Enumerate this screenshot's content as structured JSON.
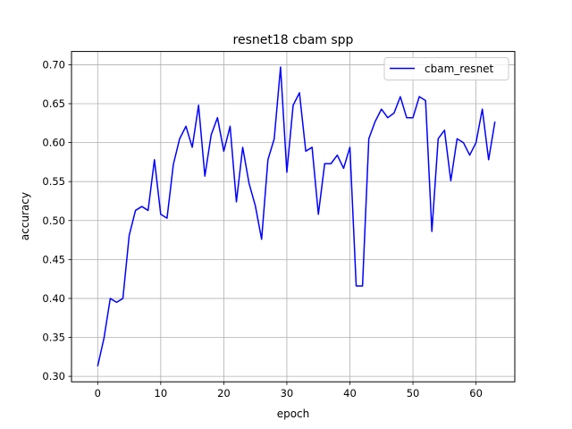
{
  "chart_data": {
    "type": "line",
    "title": "resnet18 cbam spp",
    "xlabel": "epoch",
    "ylabel": "accuracy",
    "xlim": [
      -4.15,
      66.15
    ],
    "ylim": [
      0.293,
      0.717
    ],
    "xticks": [
      0,
      10,
      20,
      30,
      40,
      50,
      60
    ],
    "yticks": [
      0.3,
      0.35,
      0.4,
      0.45,
      0.5,
      0.55,
      0.6,
      0.65,
      0.7
    ],
    "xtick_labels": [
      "0",
      "10",
      "20",
      "30",
      "40",
      "50",
      "60"
    ],
    "ytick_labels": [
      "0.30",
      "0.35",
      "0.40",
      "0.45",
      "0.50",
      "0.55",
      "0.60",
      "0.65",
      "0.70"
    ],
    "grid": true,
    "legend_position": "top-right",
    "series": [
      {
        "name": "cbam_resnet",
        "color": "#0000ff",
        "x": [
          0,
          1,
          2,
          3,
          4,
          5,
          6,
          7,
          8,
          9,
          10,
          11,
          12,
          13,
          14,
          15,
          16,
          17,
          18,
          19,
          20,
          21,
          22,
          23,
          24,
          25,
          26,
          27,
          28,
          29,
          30,
          31,
          32,
          33,
          34,
          35,
          36,
          37,
          38,
          39,
          40,
          41,
          42,
          43,
          44,
          45,
          46,
          47,
          48,
          49,
          50,
          51,
          52,
          53,
          54,
          55,
          56,
          57,
          58,
          59,
          60,
          61,
          62,
          63
        ],
        "values": [
          0.313,
          0.349,
          0.4,
          0.395,
          0.4,
          0.481,
          0.513,
          0.518,
          0.513,
          0.578,
          0.508,
          0.503,
          0.572,
          0.605,
          0.621,
          0.594,
          0.648,
          0.557,
          0.61,
          0.632,
          0.589,
          0.621,
          0.524,
          0.594,
          0.548,
          0.519,
          0.476,
          0.578,
          0.605,
          0.697,
          0.562,
          0.648,
          0.664,
          0.589,
          0.594,
          0.508,
          0.573,
          0.573,
          0.584,
          0.567,
          0.594,
          0.416,
          0.416,
          0.605,
          0.627,
          0.643,
          0.632,
          0.638,
          0.659,
          0.632,
          0.632,
          0.659,
          0.654,
          0.486,
          0.605,
          0.616,
          0.551,
          0.605,
          0.6,
          0.584,
          0.6,
          0.643,
          0.578,
          0.627
        ]
      }
    ]
  }
}
